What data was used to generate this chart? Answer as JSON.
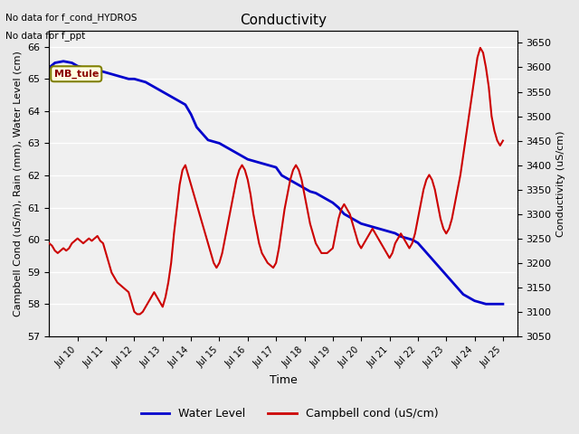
{
  "title": "Conductivity",
  "xlabel": "Time",
  "ylabel_left": "Campbell Cond (uS/m), Rain (mm), Water Level (cm)",
  "ylabel_right": "Conductivity (uS/cm)",
  "annotation_lines": [
    "No data for f_cond_HYDROS",
    "No data for f_ppt"
  ],
  "legend_label": "MB_tule",
  "legend_entries": [
    "Water Level",
    "Campbell cond (uS/cm)"
  ],
  "xlim_start": 9.0,
  "xlim_end": 25.5,
  "ylim_left": [
    57.0,
    66.5
  ],
  "ylim_right": [
    3050,
    3675
  ],
  "yticks_left": [
    57.0,
    58.0,
    59.0,
    60.0,
    61.0,
    62.0,
    63.0,
    64.0,
    65.0,
    66.0
  ],
  "yticks_right": [
    3050,
    3100,
    3150,
    3200,
    3250,
    3300,
    3350,
    3400,
    3450,
    3500,
    3550,
    3600,
    3650
  ],
  "xtick_positions": [
    10,
    11,
    12,
    13,
    14,
    15,
    16,
    17,
    18,
    19,
    20,
    21,
    22,
    23,
    24,
    25
  ],
  "xtick_labels": [
    "Jul 10",
    "Jul 11",
    "Jul 12",
    "Jul 13",
    "Jul 14",
    "Jul 15",
    "Jul 16",
    "Jul 17",
    "Jul 18",
    "Jul 19",
    "Jul 20",
    "Jul 21",
    "Jul 22",
    "Jul 23",
    "Jul 24",
    "Jul 25"
  ],
  "bg_color": "#e8e8e8",
  "plot_bg_color": "#f0f0f0",
  "water_level_color": "#0000cc",
  "campbell_cond_color": "#cc0000",
  "water_level_linewidth": 2.0,
  "campbell_cond_linewidth": 1.5,
  "water_level_x": [
    9.0,
    9.2,
    9.5,
    9.8,
    10.0,
    10.2,
    10.4,
    10.6,
    10.8,
    11.0,
    11.2,
    11.4,
    11.6,
    11.8,
    12.0,
    12.2,
    12.4,
    12.6,
    12.8,
    13.0,
    13.2,
    13.4,
    13.6,
    13.8,
    14.0,
    14.2,
    14.4,
    14.6,
    14.8,
    15.0,
    15.2,
    15.4,
    15.6,
    15.8,
    16.0,
    16.2,
    16.4,
    16.6,
    16.8,
    17.0,
    17.2,
    17.4,
    17.6,
    17.8,
    18.0,
    18.2,
    18.4,
    18.6,
    18.8,
    19.0,
    19.2,
    19.4,
    19.6,
    19.8,
    20.0,
    20.2,
    20.4,
    20.6,
    20.8,
    21.0,
    21.2,
    21.4,
    21.6,
    21.8,
    22.0,
    22.2,
    22.4,
    22.6,
    22.8,
    23.0,
    23.2,
    23.4,
    23.6,
    23.8,
    24.0,
    24.2,
    24.4,
    24.6,
    24.8,
    25.0
  ],
  "water_level_y": [
    65.35,
    65.5,
    65.55,
    65.5,
    65.4,
    65.35,
    65.3,
    65.28,
    65.25,
    65.2,
    65.15,
    65.1,
    65.05,
    65.0,
    65.0,
    64.95,
    64.9,
    64.8,
    64.7,
    64.6,
    64.5,
    64.4,
    64.3,
    64.2,
    63.9,
    63.5,
    63.3,
    63.1,
    63.05,
    63.0,
    62.9,
    62.8,
    62.7,
    62.6,
    62.5,
    62.45,
    62.4,
    62.35,
    62.3,
    62.25,
    62.0,
    61.9,
    61.8,
    61.7,
    61.6,
    61.5,
    61.45,
    61.35,
    61.25,
    61.15,
    61.0,
    60.8,
    60.7,
    60.6,
    60.5,
    60.45,
    60.4,
    60.35,
    60.3,
    60.25,
    60.2,
    60.1,
    60.05,
    60.0,
    59.9,
    59.7,
    59.5,
    59.3,
    59.1,
    58.9,
    58.7,
    58.5,
    58.3,
    58.2,
    58.1,
    58.05,
    58.0,
    58.0,
    58.0,
    58.0
  ],
  "campbell_x": [
    9.0,
    9.1,
    9.2,
    9.3,
    9.4,
    9.5,
    9.6,
    9.7,
    9.8,
    9.9,
    10.0,
    10.1,
    10.2,
    10.3,
    10.4,
    10.5,
    10.6,
    10.7,
    10.8,
    10.9,
    11.0,
    11.1,
    11.2,
    11.3,
    11.4,
    11.5,
    11.6,
    11.7,
    11.8,
    11.9,
    12.0,
    12.1,
    12.2,
    12.3,
    12.4,
    12.5,
    12.6,
    12.7,
    12.8,
    12.9,
    13.0,
    13.1,
    13.2,
    13.3,
    13.4,
    13.5,
    13.6,
    13.7,
    13.8,
    13.9,
    14.0,
    14.1,
    14.2,
    14.3,
    14.4,
    14.5,
    14.6,
    14.7,
    14.8,
    14.9,
    15.0,
    15.1,
    15.2,
    15.3,
    15.4,
    15.5,
    15.6,
    15.7,
    15.8,
    15.9,
    16.0,
    16.1,
    16.2,
    16.3,
    16.4,
    16.5,
    16.6,
    16.7,
    16.8,
    16.9,
    17.0,
    17.1,
    17.2,
    17.3,
    17.4,
    17.5,
    17.6,
    17.7,
    17.8,
    17.9,
    18.0,
    18.1,
    18.2,
    18.3,
    18.4,
    18.5,
    18.6,
    18.7,
    18.8,
    18.9,
    19.0,
    19.1,
    19.2,
    19.3,
    19.4,
    19.5,
    19.6,
    19.7,
    19.8,
    19.9,
    20.0,
    20.1,
    20.2,
    20.3,
    20.4,
    20.5,
    20.6,
    20.7,
    20.8,
    20.9,
    21.0,
    21.1,
    21.2,
    21.3,
    21.4,
    21.5,
    21.6,
    21.7,
    21.8,
    21.9,
    22.0,
    22.1,
    22.2,
    22.3,
    22.4,
    22.5,
    22.6,
    22.7,
    22.8,
    22.9,
    23.0,
    23.1,
    23.2,
    23.3,
    23.4,
    23.5,
    23.6,
    23.7,
    23.8,
    23.9,
    24.0,
    24.1,
    24.2,
    24.3,
    24.4,
    24.5,
    24.6,
    24.7,
    24.8,
    24.9,
    25.0
  ],
  "campbell_y": [
    3240,
    3235,
    3225,
    3220,
    3225,
    3230,
    3225,
    3230,
    3240,
    3245,
    3250,
    3245,
    3240,
    3245,
    3250,
    3245,
    3250,
    3255,
    3245,
    3240,
    3220,
    3200,
    3180,
    3170,
    3160,
    3155,
    3150,
    3145,
    3140,
    3120,
    3100,
    3095,
    3095,
    3100,
    3110,
    3120,
    3130,
    3140,
    3130,
    3120,
    3110,
    3130,
    3160,
    3200,
    3260,
    3310,
    3360,
    3390,
    3400,
    3380,
    3360,
    3340,
    3320,
    3300,
    3280,
    3260,
    3240,
    3220,
    3200,
    3190,
    3200,
    3220,
    3250,
    3280,
    3310,
    3340,
    3370,
    3390,
    3400,
    3390,
    3370,
    3340,
    3300,
    3270,
    3240,
    3220,
    3210,
    3200,
    3195,
    3190,
    3200,
    3230,
    3270,
    3310,
    3340,
    3370,
    3390,
    3400,
    3390,
    3370,
    3340,
    3310,
    3280,
    3260,
    3240,
    3230,
    3220,
    3220,
    3220,
    3225,
    3230,
    3260,
    3290,
    3310,
    3320,
    3310,
    3300,
    3280,
    3260,
    3240,
    3230,
    3240,
    3250,
    3260,
    3270,
    3260,
    3250,
    3240,
    3230,
    3220,
    3210,
    3220,
    3240,
    3250,
    3260,
    3250,
    3240,
    3230,
    3240,
    3260,
    3290,
    3320,
    3350,
    3370,
    3380,
    3370,
    3350,
    3320,
    3290,
    3270,
    3260,
    3270,
    3290,
    3320,
    3350,
    3380,
    3420,
    3460,
    3500,
    3540,
    3580,
    3620,
    3640,
    3630,
    3600,
    3560,
    3500,
    3470,
    3450,
    3440,
    3450
  ]
}
